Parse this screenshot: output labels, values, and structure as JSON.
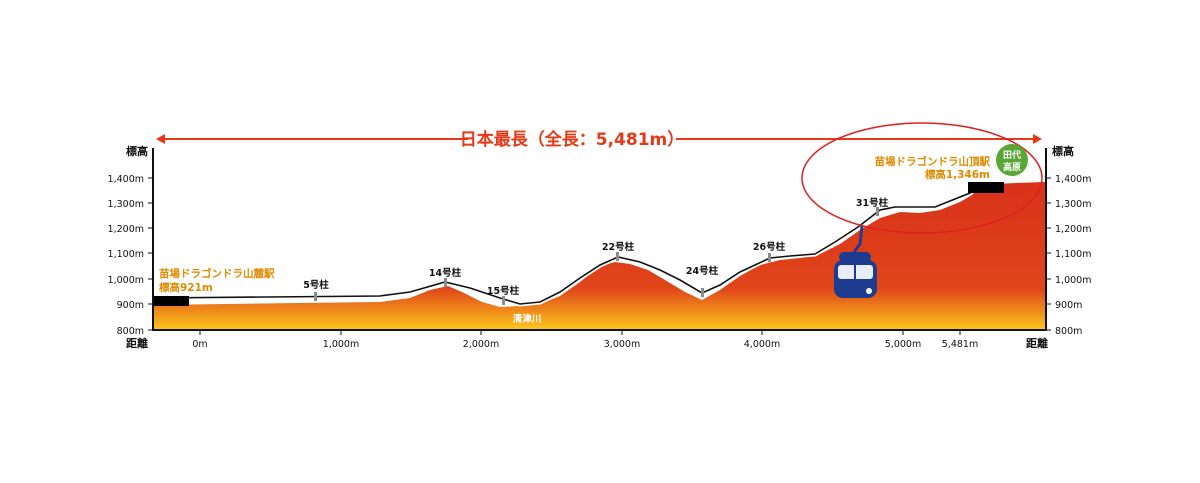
{
  "headline": "日本最長（全長：5,481m）",
  "axis": {
    "left_title": "標高",
    "right_title": "標高",
    "bottom_left_title": "距離",
    "bottom_right_title": "距離",
    "y_ticks": [
      "1,400m",
      "1,300m",
      "1,200m",
      "1,100m",
      "1,000m",
      "900m",
      "800m"
    ],
    "x_ticks": [
      "0m",
      "1,000m",
      "2,000m",
      "3,000m",
      "4,000m",
      "5,000m",
      "5,481m"
    ]
  },
  "stations": {
    "base_name": "苗場ドラゴンドラ山麓駅",
    "base_elevation": "標高921m",
    "top_name": "苗場ドラゴンドラ山頂駅",
    "top_elevation": "標高1,346m"
  },
  "badge": {
    "line1": "田代",
    "line2": "高原"
  },
  "river": "清津川",
  "pylons": [
    "5号柱",
    "14号柱",
    "15号柱",
    "22号柱",
    "24号柱",
    "26号柱",
    "31号柱"
  ],
  "colors": {
    "terrain_top": "#d8321a",
    "terrain_bottom": "#f9c41a",
    "headline": "#e53918",
    "station_label": "#e08a00",
    "badge": "#5aa636",
    "highlight_ellipse": "#e02020",
    "gondola": "#1d3c8f"
  },
  "chart_data": {
    "type": "area",
    "x_unit": "m",
    "y_unit": "m",
    "x_ticks": [
      0,
      1000,
      2000,
      3000,
      4000,
      5000,
      5481
    ],
    "y_ticks": [
      800,
      900,
      1000,
      1100,
      1200,
      1300,
      1400
    ],
    "ylim": [
      800,
      1400
    ],
    "total_length": 5481,
    "base_elevation": 921,
    "top_elevation": 1346
  }
}
